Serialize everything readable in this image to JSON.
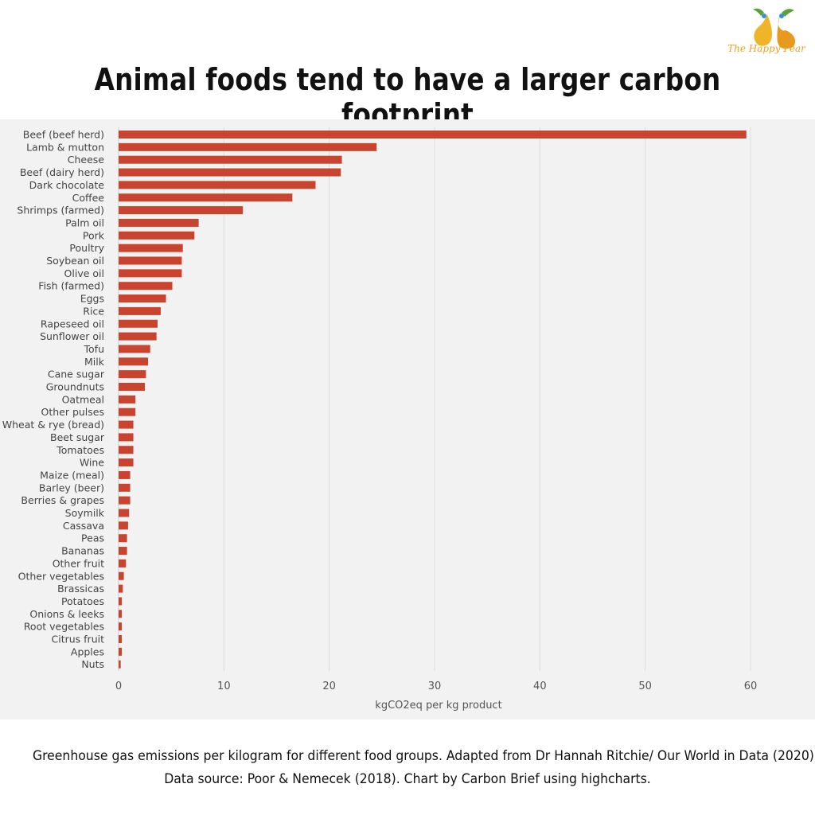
{
  "title": "Animal foods tend to have a larger carbon footprint",
  "logo": {
    "text": "The Happy Pear",
    "icon": "pear-icon"
  },
  "caption": {
    "line1": "Greenhouse gas emissions per kilogram for different food groups. Adapted from Dr Hannah Ritchie/ Our World in Data (2020)",
    "line2": "Data source: Poor & Nemecek (2018). Chart by Carbon Brief using highcharts."
  },
  "colors": {
    "bar": "#c9432f",
    "grid": "#dddddd",
    "panel": "#f2f2f2",
    "tick": "#555555"
  },
  "chart_data": {
    "type": "bar",
    "orientation": "horizontal",
    "title": "Animal foods tend to have a larger carbon footprint",
    "xlabel": "kgCO2eq per kg product",
    "ylabel": "",
    "xlim": [
      0,
      60
    ],
    "xticks": [
      0,
      10,
      20,
      30,
      40,
      50,
      60
    ],
    "grid": true,
    "categories": [
      "Beef (beef herd)",
      "Lamb & mutton",
      "Cheese",
      "Beef (dairy herd)",
      "Dark chocolate",
      "Coffee",
      "Shrimps (farmed)",
      "Palm oil",
      "Pork",
      "Poultry",
      "Soybean oil",
      "Olive oil",
      "Fish (farmed)",
      "Eggs",
      "Rice",
      "Rapeseed oil",
      "Sunflower oil",
      "Tofu",
      "Milk",
      "Cane sugar",
      "Groundnuts",
      "Oatmeal",
      "Other pulses",
      "Wheat & rye (bread)",
      "Beet sugar",
      "Tomatoes",
      "Wine",
      "Maize (meal)",
      "Barley (beer)",
      "Berries & grapes",
      "Soymilk",
      "Cassava",
      "Peas",
      "Bananas",
      "Other fruit",
      "Other vegetables",
      "Brassicas",
      "Potatoes",
      "Onions & leeks",
      "Root vegetables",
      "Citrus fruit",
      "Apples",
      "Nuts"
    ],
    "values": [
      59.6,
      24.5,
      21.2,
      21.1,
      18.7,
      16.5,
      11.8,
      7.6,
      7.2,
      6.1,
      6.0,
      6.0,
      5.1,
      4.5,
      4.0,
      3.7,
      3.6,
      3.0,
      2.8,
      2.6,
      2.5,
      1.6,
      1.6,
      1.4,
      1.4,
      1.4,
      1.4,
      1.1,
      1.1,
      1.1,
      1.0,
      0.9,
      0.8,
      0.8,
      0.7,
      0.5,
      0.4,
      0.3,
      0.3,
      0.3,
      0.3,
      0.3,
      0.2
    ]
  }
}
